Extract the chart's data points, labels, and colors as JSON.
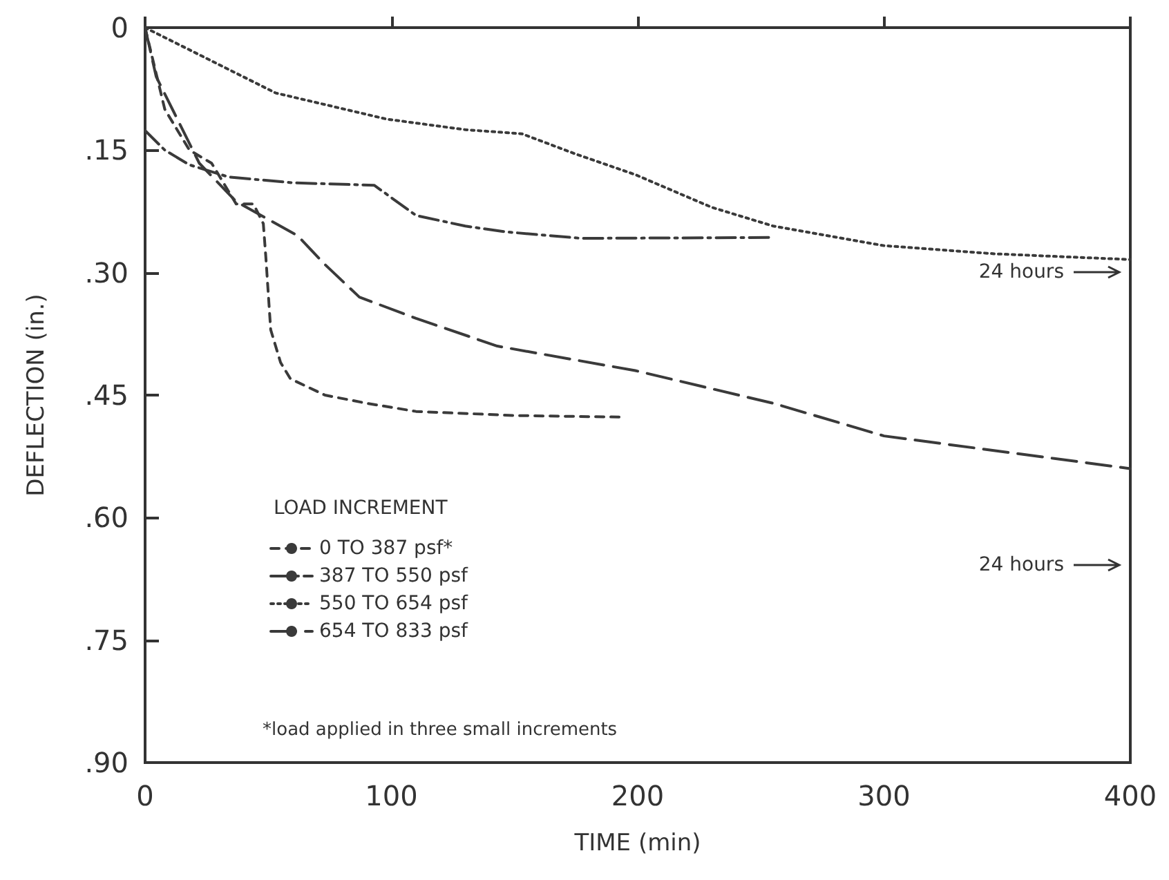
{
  "chart_data": {
    "type": "line",
    "xlabel": "TIME (min)",
    "ylabel": "DEFLECTION (in.)",
    "legend_title": "LOAD INCREMENT",
    "legend": "bottom left",
    "grid": false,
    "marker": "none",
    "xlim": [
      0,
      400
    ],
    "xticks": [
      0,
      100,
      200,
      300,
      400
    ],
    "ylim": [
      0.9,
      0
    ],
    "yticks": [
      0,
      {
        "value": 0.15,
        "label": ".15"
      },
      {
        "value": 0.3,
        "label": ".30"
      },
      {
        "value": 0.45,
        "label": ".45"
      },
      {
        "value": 0.6,
        "label": ".60"
      },
      {
        "value": 0.75,
        "label": ".75"
      },
      {
        "value": 0.9,
        "label": ".90"
      }
    ],
    "series": [
      {
        "name": "0 TO 387 psf*",
        "color": "#3a3a3a",
        "line_style": "dashed",
        "x": [
          0,
          8,
          18,
          27,
          37,
          44,
          48,
          49,
          51,
          55,
          59,
          66,
          73,
          90,
          110,
          150,
          195
        ],
        "values": [
          0,
          0.1,
          0.15,
          0.166,
          0.216,
          0.216,
          0.24,
          0.28,
          0.37,
          0.41,
          0.43,
          0.44,
          0.45,
          0.46,
          0.47,
          0.475,
          0.477
        ]
      },
      {
        "name": "387 TO 550 psf",
        "color": "#3a3a3a",
        "line_style": "dashed",
        "x": [
          0,
          8,
          18,
          34,
          60,
          93,
          110,
          130,
          146,
          177,
          254
        ],
        "values": [
          0.126,
          0.15,
          0.168,
          0.183,
          0.19,
          0.193,
          0.23,
          0.243,
          0.25,
          0.258,
          0.257
        ]
      },
      {
        "name": "550 TO 654 psf",
        "color": "#3a3a3a",
        "line_style": "dotted",
        "x": [
          0,
          53,
          98,
          130,
          153,
          175,
          199,
          230,
          255,
          300,
          345,
          400
        ],
        "values": [
          0,
          0.08,
          0.112,
          0.125,
          0.13,
          0.155,
          0.18,
          0.22,
          0.243,
          0.267,
          0.277,
          0.284
        ]
      },
      {
        "name": "654 TO 833 psf",
        "color": "#3a3a3a",
        "line_style": "dashed",
        "x": [
          0,
          4.5,
          22,
          37,
          62,
          73,
          87,
          110,
          143,
          199,
          255,
          300,
          400
        ],
        "values": [
          0,
          0.06,
          0.166,
          0.213,
          0.255,
          0.29,
          0.33,
          0.356,
          0.39,
          0.42,
          0.46,
          0.5,
          0.54
        ]
      }
    ],
    "annotations": [
      "24 hours",
      "24 hours",
      "*load applied in three small increments"
    ]
  }
}
